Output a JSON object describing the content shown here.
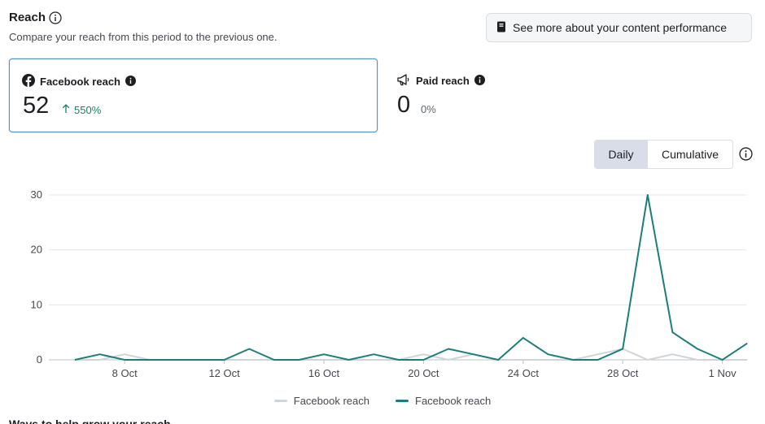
{
  "header": {
    "title": "Reach",
    "subtitle": "Compare your reach from this period to the previous one.",
    "content_performance_button": "See more about your content performance"
  },
  "cards": {
    "facebook": {
      "label": "Facebook reach",
      "value": "52",
      "change": "550%",
      "direction": "up"
    },
    "paid": {
      "label": "Paid reach",
      "value": "0",
      "change": "0%"
    }
  },
  "toggle": {
    "daily": "Daily",
    "cumulative": "Cumulative",
    "selected": "Daily"
  },
  "chart_data": {
    "type": "line",
    "x": [
      "6 Oct",
      "7 Oct",
      "8 Oct",
      "9 Oct",
      "10 Oct",
      "11 Oct",
      "12 Oct",
      "13 Oct",
      "14 Oct",
      "15 Oct",
      "16 Oct",
      "17 Oct",
      "18 Oct",
      "19 Oct",
      "20 Oct",
      "21 Oct",
      "22 Oct",
      "23 Oct",
      "24 Oct",
      "25 Oct",
      "26 Oct",
      "27 Oct",
      "28 Oct",
      "29 Oct",
      "30 Oct",
      "31 Oct",
      "1 Nov",
      "2 Nov"
    ],
    "xticks": [
      "8 Oct",
      "12 Oct",
      "16 Oct",
      "20 Oct",
      "24 Oct",
      "28 Oct",
      "1 Nov"
    ],
    "yticks": [
      0,
      10,
      20,
      30
    ],
    "ylim": [
      0,
      30
    ],
    "series": [
      {
        "name": "Facebook reach",
        "color": "#d0d3d8",
        "values": [
          0,
          0,
          1,
          0,
          0,
          0,
          0,
          0,
          0,
          0,
          0,
          0,
          0,
          0,
          1,
          0,
          1,
          0,
          0,
          0,
          0,
          1,
          2,
          0,
          1,
          0,
          0,
          0
        ]
      },
      {
        "name": "Facebook reach",
        "color": "#1a7f7a",
        "values": [
          0,
          1,
          0,
          0,
          0,
          0,
          0,
          2,
          0,
          0,
          1,
          0,
          1,
          0,
          0,
          2,
          1,
          0,
          4,
          1,
          0,
          0,
          2,
          30,
          5,
          2,
          0,
          3
        ]
      }
    ],
    "grid": true,
    "legend_position": "bottom"
  },
  "next_section": {
    "title": "Ways to help grow your reach"
  }
}
